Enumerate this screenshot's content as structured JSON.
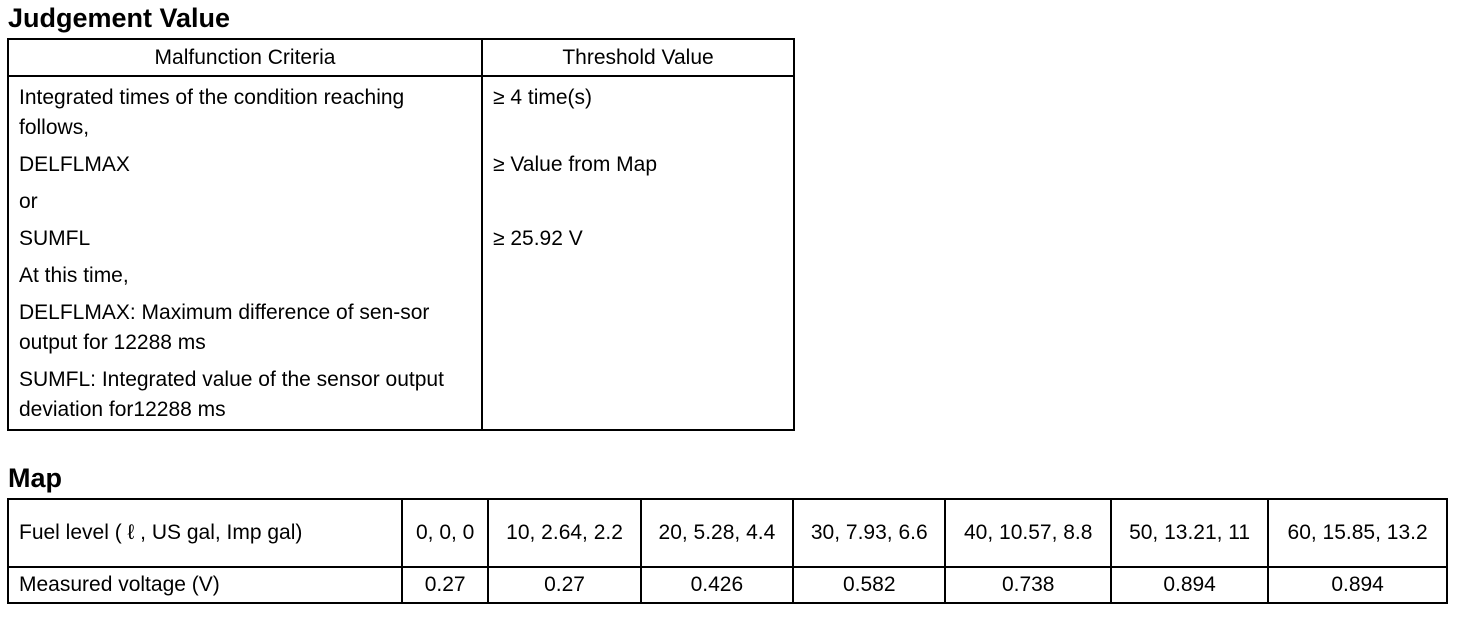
{
  "judgement": {
    "title": "Judgement Value",
    "headers": [
      "Malfunction Criteria",
      "Threshold Value"
    ],
    "criteria_lines": [
      "Integrated times of the condition reaching follows,",
      "DELFLMAX",
      "or",
      "SUMFL",
      "At this time,",
      "DELFLMAX: Maximum difference of sen-sor output for 12288 ms",
      "SUMFL: Integrated value of the sensor output deviation for12288 ms"
    ],
    "thresholds": {
      "times": "≥ 4 time(s)",
      "delflmax": "≥ Value from Map",
      "sumfl": "≥ 25.92 V"
    }
  },
  "map": {
    "title": "Map",
    "row1": {
      "label": "Fuel level ( ℓ , US gal, Imp gal)",
      "values": [
        "0, 0, 0",
        "10, 2.64, 2.2",
        "20, 5.28, 4.4",
        "30, 7.93, 6.6",
        "40, 10.57, 8.8",
        "50, 13.21, 11",
        "60, 15.85, 13.2"
      ]
    },
    "row2": {
      "label": "Measured voltage (V)",
      "values": [
        "0.27",
        "0.27",
        "0.426",
        "0.582",
        "0.738",
        "0.894",
        "0.894"
      ]
    }
  }
}
